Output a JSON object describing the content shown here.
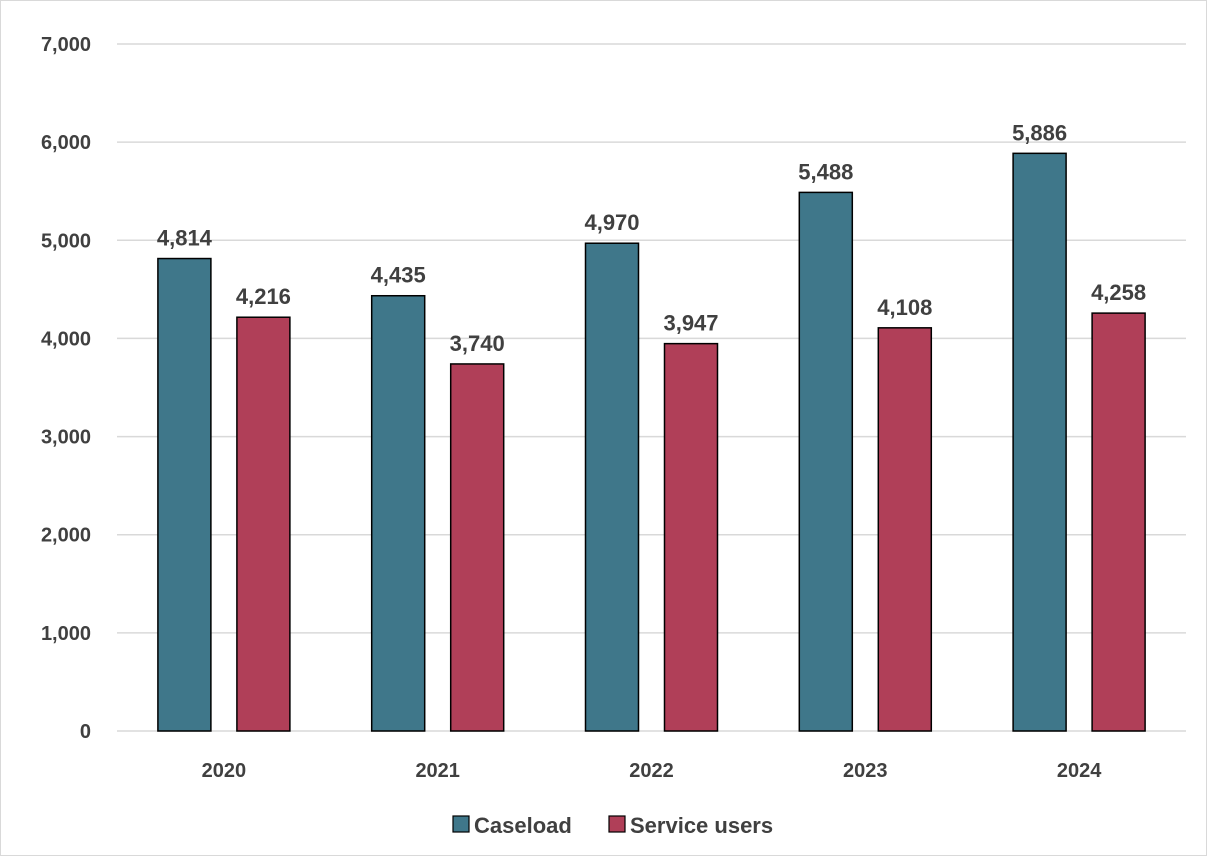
{
  "chart_data": {
    "type": "bar",
    "categories": [
      "2020",
      "2021",
      "2022",
      "2023",
      "2024"
    ],
    "series": [
      {
        "name": "Caseload",
        "color": "#3f778a",
        "values": [
          4814,
          4435,
          4970,
          5488,
          5886
        ],
        "labels": [
          "4,814",
          "4,435",
          "4,970",
          "5,488",
          "5,886"
        ]
      },
      {
        "name": "Service users",
        "color": "#b03f58",
        "values": [
          4216,
          3740,
          3947,
          4108,
          4258
        ],
        "labels": [
          "4,216",
          "3,740",
          "3,947",
          "4,108",
          "4,258"
        ]
      }
    ],
    "ylim": [
      0,
      7000
    ],
    "yticks": [
      0,
      1000,
      2000,
      3000,
      4000,
      5000,
      6000,
      7000
    ],
    "ytick_labels": [
      "0",
      "1,000",
      "2,000",
      "3,000",
      "4,000",
      "5,000",
      "6,000",
      "7,000"
    ],
    "grid": true,
    "legend_position": "bottom"
  }
}
